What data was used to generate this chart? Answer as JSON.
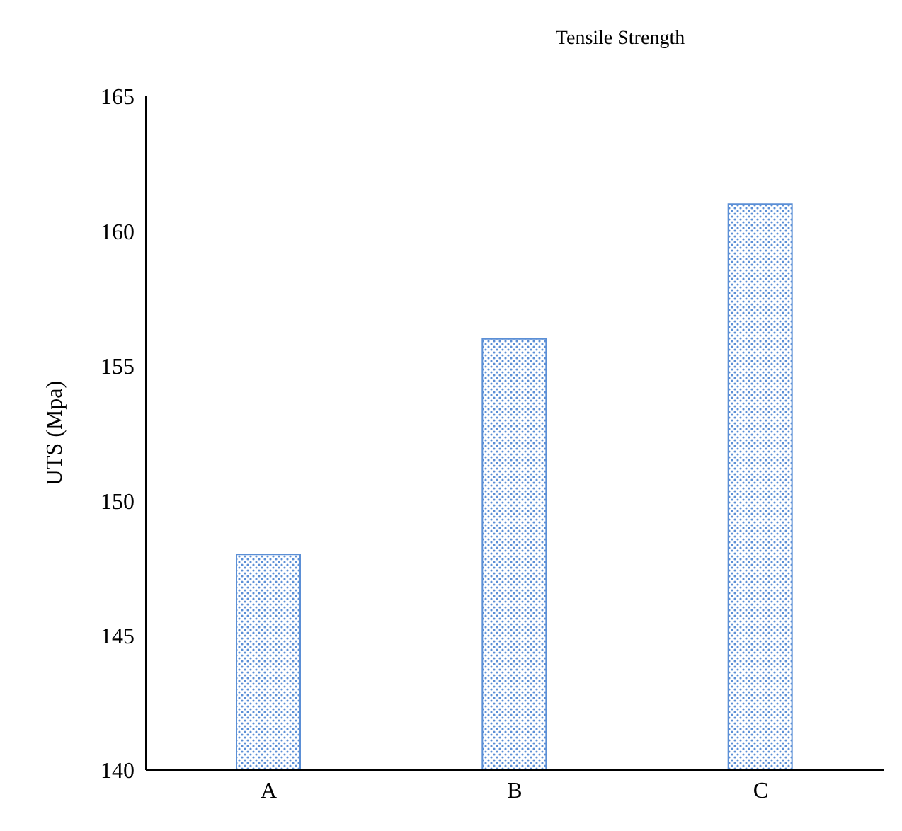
{
  "chart_data": {
    "type": "bar",
    "title": "Tensile Strength",
    "ylabel": "UTS (Mpa)",
    "categories": [
      "A",
      "B",
      "C"
    ],
    "values": [
      148,
      156,
      161
    ],
    "color": "#5b8fd6",
    "ylim": [
      140,
      165
    ],
    "yticks": [
      140,
      145,
      150,
      155,
      160,
      165
    ],
    "grid": false
  }
}
